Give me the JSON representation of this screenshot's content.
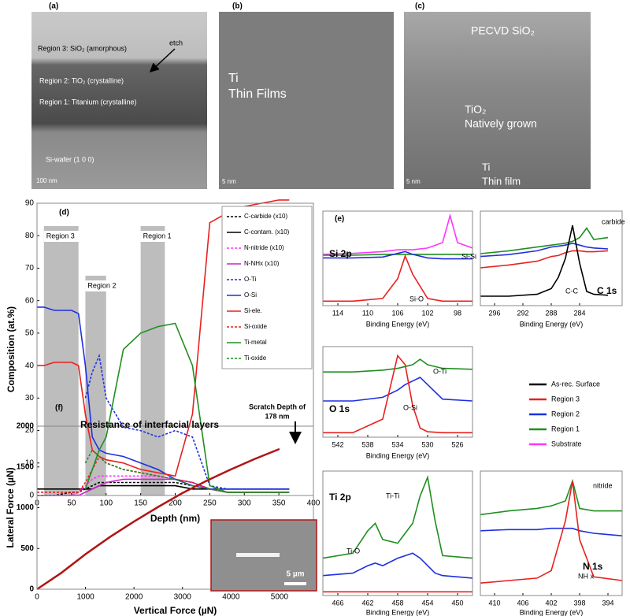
{
  "images": [
    {
      "panel": "(a)",
      "texts": [
        "Region 3: SiO₂ (amorphous)",
        "etch",
        "Region 2: TiO₂ (crystalline)",
        "Region 1: Titanium (crystalline)",
        "Si-wafer (1 0 0)",
        "100 nm"
      ]
    },
    {
      "panel": "(b)",
      "texts": [
        "Ti",
        "Thin Films",
        "5 nm"
      ]
    },
    {
      "panel": "(c)",
      "texts": [
        "PECVD SiO₂",
        "TiO₂",
        "Natively grown",
        "Ti",
        "Thin film",
        "5 nm"
      ]
    }
  ],
  "xps_legend": [
    {
      "name": "As-rec. Surface",
      "color": "#000000"
    },
    {
      "name": "Region 3",
      "color": "#e8211f"
    },
    {
      "name": "Region 2",
      "color": "#1f2fe0"
    },
    {
      "name": "Region 1",
      "color": "#1f8f1f"
    },
    {
      "name": "Substrate",
      "color": "#ff33ff"
    }
  ],
  "chart_data": [
    {
      "type": "line",
      "panel": "(d)",
      "xlabel": "Depth (nm)",
      "ylabel": "Composition (at.%)",
      "xlim": [
        0,
        400
      ],
      "ylim": [
        0,
        90
      ],
      "xticks": [
        0,
        50,
        100,
        150,
        200,
        250,
        300,
        350,
        400
      ],
      "yticks": [
        0,
        10,
        20,
        30,
        40,
        50,
        60,
        70,
        80,
        90
      ],
      "legend": "upper right",
      "bands": [
        {
          "label": "Region 3",
          "x": [
            10,
            60
          ]
        },
        {
          "label": "Region 2",
          "x": [
            70,
            100
          ]
        },
        {
          "label": "Region 1",
          "x": [
            150,
            185
          ]
        }
      ],
      "x": [
        0,
        10,
        25,
        50,
        60,
        70,
        80,
        90,
        100,
        125,
        150,
        175,
        200,
        225,
        250,
        275,
        300,
        350,
        365
      ],
      "series": [
        {
          "name": "C-carbide (x10)",
          "color": "#000000",
          "dash": true,
          "values": [
            0,
            0,
            0,
            1,
            1,
            2,
            3,
            4,
            4,
            4,
            4,
            4,
            4,
            3,
            2,
            1,
            1,
            1,
            1
          ]
        },
        {
          "name": "C-contam. (x10)",
          "color": "#000000",
          "dash": false,
          "values": [
            2,
            2,
            2,
            2,
            2,
            2,
            2,
            3,
            3,
            3,
            3,
            3,
            3,
            2,
            2,
            2,
            2,
            2,
            2
          ]
        },
        {
          "name": "N-nitride (x10)",
          "color": "#ff33ff",
          "dash": true,
          "values": [
            0,
            0,
            0,
            0,
            1,
            3,
            5,
            6,
            6,
            6,
            6,
            6,
            5,
            4,
            2,
            1,
            1,
            1,
            1
          ]
        },
        {
          "name": "N-NHx (x10)",
          "color": "#cc22cc",
          "dash": false,
          "values": [
            0,
            0,
            0,
            0,
            0,
            1,
            2,
            3,
            4,
            5,
            5,
            5,
            5,
            4,
            2,
            1,
            1,
            1,
            1
          ]
        },
        {
          "name": "O-Ti",
          "color": "#1f2fe0",
          "dash": true,
          "values": [
            null,
            null,
            null,
            null,
            null,
            30,
            38,
            43,
            30,
            21,
            20,
            18,
            20,
            18,
            3,
            2,
            2,
            2,
            2
          ]
        },
        {
          "name": "O-Si",
          "color": "#1f2fe0",
          "dash": false,
          "values": [
            58,
            58,
            57,
            57,
            56,
            40,
            18,
            14,
            13,
            12,
            10,
            8,
            5,
            3,
            2,
            2,
            2,
            2,
            2
          ]
        },
        {
          "name": "Si-ele.",
          "color": "#e8211f",
          "dash": false,
          "values": [
            40,
            40,
            41,
            41,
            40,
            25,
            14,
            12,
            11,
            10,
            8,
            7,
            6,
            25,
            84,
            87,
            89,
            91,
            91
          ]
        },
        {
          "name": "Si-oxide",
          "color": "#e8211f",
          "dash": true,
          "values": [
            1,
            1,
            1,
            1,
            1,
            4,
            8,
            12,
            10,
            8,
            7,
            6,
            5,
            4,
            2,
            1,
            1,
            1,
            1
          ]
        },
        {
          "name": "Ti-metal",
          "color": "#1f8f1f",
          "dash": false,
          "values": [
            null,
            null,
            null,
            null,
            null,
            2,
            8,
            14,
            18,
            45,
            50,
            52,
            53,
            40,
            3,
            1,
            1,
            1,
            1
          ]
        },
        {
          "name": "Ti-oxide",
          "color": "#1f8f1f",
          "dash": true,
          "values": [
            null,
            null,
            null,
            null,
            null,
            10,
            14,
            12,
            10,
            8,
            7,
            6,
            5,
            3,
            2,
            1,
            1,
            1,
            1
          ]
        }
      ]
    },
    {
      "type": "line",
      "panel": "(e)",
      "title": "Si 2p",
      "xlabel": "Binding Energy (eV)",
      "xlim": [
        116,
        96
      ],
      "ylim": [
        0,
        105
      ],
      "xticks": [
        114,
        110,
        106,
        102,
        98
      ],
      "annotations": [
        "Si-Si",
        "Si-O"
      ],
      "x": [
        116,
        112,
        108,
        106,
        105,
        104,
        102,
        100,
        99,
        98,
        96
      ],
      "series": [
        {
          "name": "Substrate",
          "color": "#ff33ff",
          "values": [
            57,
            58,
            60,
            62,
            62,
            62,
            64,
            70,
            100,
            70,
            64
          ]
        },
        {
          "name": "Region 1",
          "color": "#1f8f1f",
          "values": [
            56,
            56,
            57,
            57,
            57,
            57,
            57,
            57,
            57,
            57,
            57
          ]
        },
        {
          "name": "Region 2",
          "color": "#1f2fe0",
          "values": [
            53,
            53,
            54,
            58,
            60,
            57,
            53,
            52,
            52,
            52,
            52
          ]
        },
        {
          "name": "Region 3",
          "color": "#e8211f",
          "values": [
            5,
            5,
            8,
            30,
            55,
            35,
            8,
            5,
            5,
            5,
            5
          ]
        }
      ]
    },
    {
      "type": "line",
      "title": "C 1s",
      "xlabel": "Binding Energy (eV)",
      "xlim": [
        298,
        278
      ],
      "ylim": [
        0,
        100
      ],
      "xticks": [
        296,
        292,
        288,
        284
      ],
      "annotations": [
        "carbide",
        "C-C"
      ],
      "x": [
        298,
        294,
        290,
        288,
        287,
        286,
        285,
        284,
        283,
        282,
        280
      ],
      "series": [
        {
          "name": "Region 1",
          "color": "#1f8f1f",
          "values": [
            55,
            58,
            62,
            64,
            65,
            66,
            68,
            72,
            82,
            70,
            72
          ]
        },
        {
          "name": "Region 2",
          "color": "#1f2fe0",
          "values": [
            52,
            54,
            58,
            62,
            63,
            64,
            66,
            64,
            62,
            61,
            60
          ]
        },
        {
          "name": "Region 3",
          "color": "#e8211f",
          "values": [
            40,
            43,
            47,
            52,
            53,
            56,
            58,
            58,
            57,
            57,
            58
          ]
        },
        {
          "name": "As-rec. Surface",
          "color": "#000000",
          "values": [
            10,
            10,
            12,
            18,
            30,
            50,
            85,
            45,
            15,
            12,
            11
          ]
        }
      ]
    },
    {
      "type": "line",
      "title": "O 1s",
      "xlabel": "Binding Energy (eV)",
      "xlim": [
        544,
        524
      ],
      "ylim": [
        0,
        100
      ],
      "xticks": [
        542,
        538,
        534,
        530,
        526
      ],
      "annotations": [
        "O-Ti",
        "O-Si"
      ],
      "x": [
        544,
        540,
        536,
        534,
        533,
        532,
        531,
        530,
        528,
        524
      ],
      "series": [
        {
          "name": "Region 1",
          "color": "#1f8f1f",
          "values": [
            72,
            72,
            74,
            76,
            78,
            80,
            86,
            80,
            76,
            75
          ]
        },
        {
          "name": "Region 2",
          "color": "#1f2fe0",
          "values": [
            40,
            40,
            44,
            52,
            58,
            62,
            66,
            58,
            42,
            40
          ]
        },
        {
          "name": "Region 3",
          "color": "#e8211f",
          "values": [
            5,
            5,
            20,
            90,
            80,
            35,
            10,
            6,
            5,
            5
          ]
        }
      ]
    },
    {
      "type": "line",
      "title": "Ti 2p",
      "xlabel": "Binding Energy (eV)",
      "xlim": [
        468,
        448
      ],
      "ylim": [
        0,
        100
      ],
      "xticks": [
        466,
        462,
        458,
        454,
        450
      ],
      "annotations": [
        "Ti-Ti",
        "Ti-O"
      ],
      "x": [
        468,
        464,
        462,
        461,
        460,
        458,
        456,
        455,
        454,
        453,
        452,
        448
      ],
      "series": [
        {
          "name": "Region 1",
          "color": "#1f8f1f",
          "values": [
            30,
            34,
            52,
            58,
            45,
            42,
            58,
            80,
            95,
            60,
            32,
            30
          ]
        },
        {
          "name": "Region 2",
          "color": "#1f2fe0",
          "values": [
            16,
            18,
            24,
            26,
            24,
            30,
            34,
            30,
            24,
            18,
            16,
            14
          ]
        },
        {
          "name": "Region 3",
          "color": "#e8211f",
          "values": [
            3,
            3,
            3,
            3,
            3,
            3,
            3,
            3,
            3,
            3,
            3,
            3
          ]
        }
      ]
    },
    {
      "type": "line",
      "title": "N 1s",
      "xlabel": "Binding Energy (eV)",
      "xlim": [
        412,
        392
      ],
      "ylim": [
        0,
        100
      ],
      "xticks": [
        410,
        406,
        402,
        398,
        394
      ],
      "annotations": [
        "nitride",
        "NH x"
      ],
      "x": [
        412,
        408,
        404,
        402,
        401,
        400,
        399,
        398,
        396,
        392
      ],
      "series": [
        {
          "name": "Region 1",
          "color": "#1f8f1f",
          "values": [
            65,
            68,
            70,
            72,
            74,
            76,
            92,
            70,
            68,
            68
          ]
        },
        {
          "name": "Region 2",
          "color": "#1f2fe0",
          "values": [
            52,
            53,
            53,
            54,
            54,
            54,
            54,
            52,
            50,
            48
          ]
        },
        {
          "name": "Region 3",
          "color": "#e8211f",
          "values": [
            10,
            12,
            14,
            20,
            40,
            60,
            92,
            45,
            15,
            12
          ]
        }
      ]
    },
    {
      "type": "line",
      "panel": "(f)",
      "title": "Resistance of interfacial layers",
      "xlabel": "Vertical Force (µN)",
      "ylabel": "Lateral Force (µN)",
      "xlim": [
        0,
        5700
      ],
      "ylim": [
        0,
        2000
      ],
      "xticks": [
        0,
        1000,
        2000,
        3000,
        4000,
        5000
      ],
      "yticks": [
        0,
        500,
        1000,
        1500,
        2000
      ],
      "annotations": [
        "Scratch Depth of",
        "178 nm"
      ],
      "inset_scale": "5 µm",
      "x": [
        0,
        500,
        1000,
        1500,
        2000,
        2500,
        3000,
        3500,
        4000,
        4500,
        5000
      ],
      "series": [
        {
          "name": "Lateral Force",
          "color": "#b01515",
          "values": [
            0,
            200,
            430,
            640,
            830,
            1010,
            1180,
            1330,
            1470,
            1600,
            1720
          ]
        }
      ]
    }
  ]
}
